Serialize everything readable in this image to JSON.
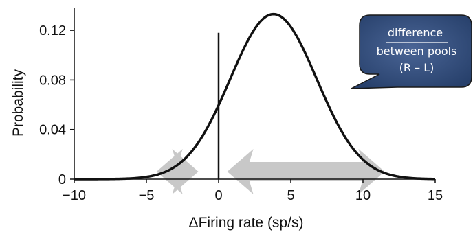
{
  "chart_data": {
    "type": "line",
    "xlabel": "ΔFiring rate (sp/s)",
    "ylabel": "Probability",
    "xlim": [
      -10,
      15
    ],
    "ylim": [
      0,
      0.135
    ],
    "x_ticks": [
      -10,
      -5,
      0,
      5,
      10,
      15
    ],
    "x_tick_labels": [
      "−10",
      "−5",
      "0",
      "5",
      "10",
      "15"
    ],
    "y_ticks": [
      0,
      0.04,
      0.08,
      0.12
    ],
    "y_tick_labels": [
      "0",
      "0.04",
      "0.08",
      "0.12"
    ],
    "series": [
      {
        "distribution": "gaussian",
        "mean": 3.8,
        "sd": 3.0,
        "peak": 0.133,
        "color": "#111111"
      }
    ],
    "reference_line": {
      "x": 0,
      "y_top": 0.118,
      "color": "#111111"
    },
    "arrows": [
      {
        "from": -4.3,
        "to": -1.4,
        "color": "#c8c8c8",
        "direction": "bidirectional"
      },
      {
        "from": 0.6,
        "to": 11.5,
        "color": "#c8c8c8",
        "direction": "bidirectional"
      }
    ],
    "callout": {
      "lines": [
        "difference",
        "between pools",
        "(R – L)"
      ],
      "bg_color": "#2f4a78",
      "position": "top-right"
    },
    "grid": false,
    "legend": "none"
  }
}
